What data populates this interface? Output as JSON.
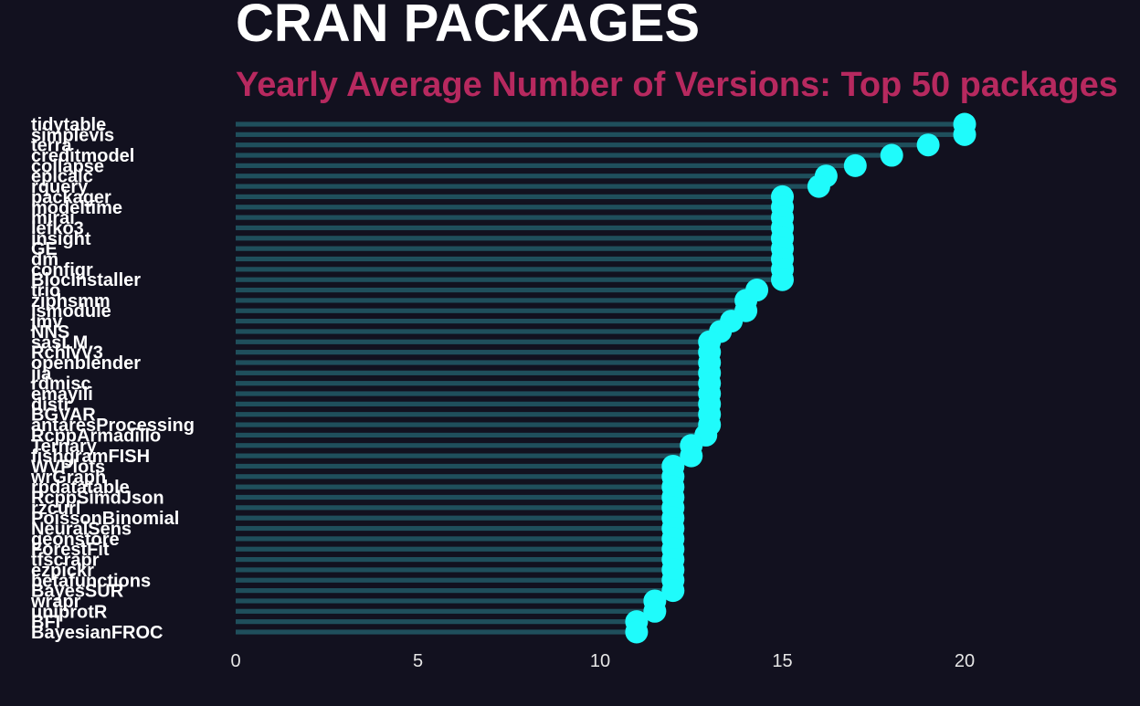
{
  "colors": {
    "background": "#12111f",
    "title": "#ffffff",
    "subtitle": "#b7295f",
    "bar": "#1f4f5c",
    "point": "#1ffbfb",
    "label": "#ffffff",
    "tick": "#e6e6e6"
  },
  "chart_data": {
    "type": "lollipop",
    "orientation": "horizontal",
    "title": "CRAN PACKAGES",
    "subtitle": "Yearly Average Number of Versions: Top 50 packages",
    "xlim": [
      0,
      20
    ],
    "x_ticks": [
      0,
      5,
      10,
      15,
      20
    ],
    "grid": false,
    "categories": [
      "tidytable",
      "simplevis",
      "terra",
      "creditmodel",
      "collapse",
      "epicalc",
      "rquery",
      "packager",
      "modeltime",
      "mirai",
      "lefko3",
      "insight",
      "GE",
      "dm",
      "configr",
      "BiocInstaller",
      "trio",
      "ziphsmm",
      "jsmodule",
      "jmv",
      "NNS",
      "sasLM",
      "RchivV3",
      "openblender",
      "jia",
      "rdmisc",
      "emayili",
      "distr",
      "BGVAR",
      "antaresProcessing",
      "RcppArmadillo",
      "Ternary",
      "fishgramFISH",
      "WVPlots",
      "wrGraph",
      "rpdatatable",
      "RcppSimdJson",
      "rzcurl",
      "PoissonBinomial",
      "NeuralSens",
      "geonstore",
      "ForestFit",
      "tfscrapr",
      "ezpickr",
      "betafunctions",
      "BayesSUR",
      "wrapr",
      "uniprotR",
      "BFI",
      "BayesianFROC"
    ],
    "values": [
      20,
      20,
      19,
      18,
      17,
      16.2,
      16,
      15,
      15,
      15,
      15,
      15,
      15,
      15,
      15,
      15,
      14.3,
      14,
      14,
      13.6,
      13.3,
      13,
      13,
      13,
      13,
      13,
      13,
      13,
      13,
      13,
      12.9,
      12.5,
      12.5,
      12,
      12,
      12,
      12,
      12,
      12,
      12,
      12,
      12,
      12,
      12,
      12,
      12,
      11.5,
      11.5,
      11,
      11
    ]
  }
}
